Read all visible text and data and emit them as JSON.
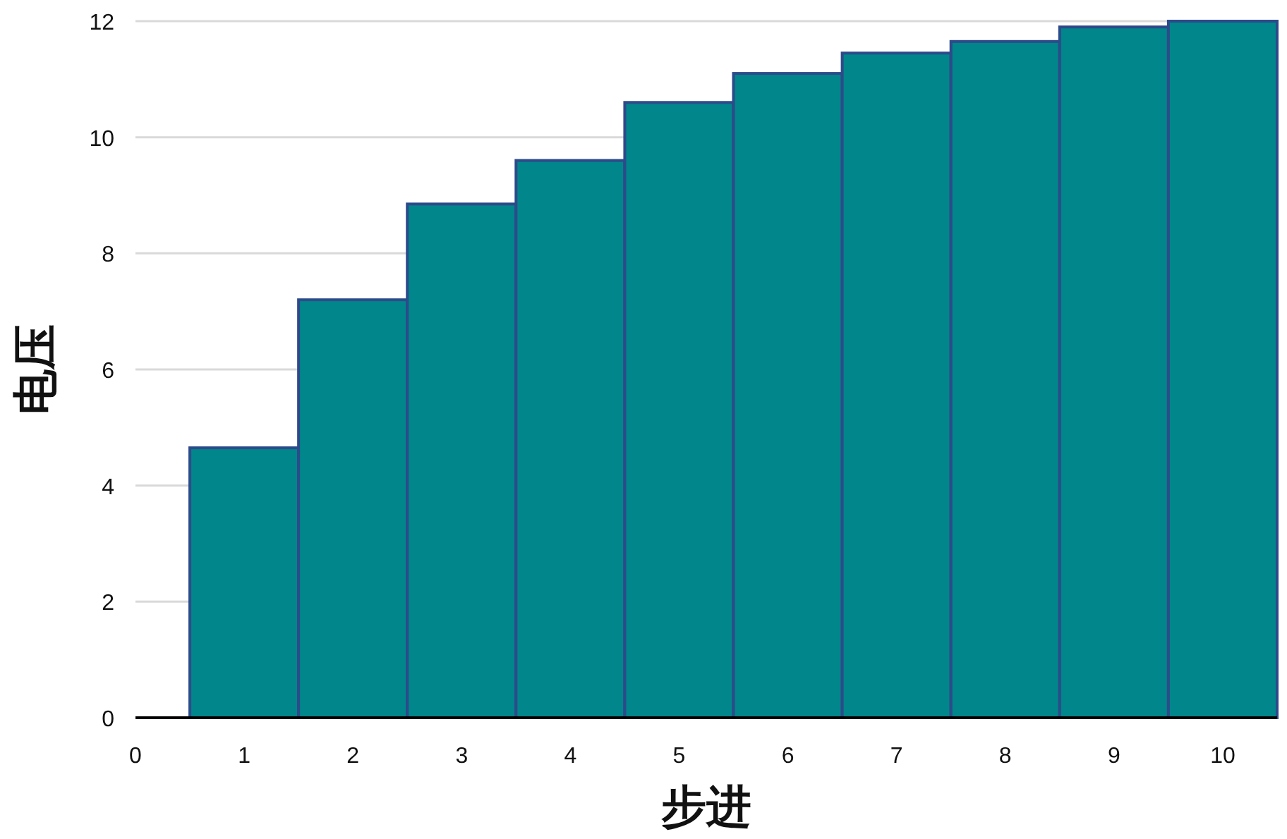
{
  "chart_data": {
    "type": "bar",
    "xlabel": "步进",
    "ylabel": "电压",
    "x": [
      1,
      2,
      3,
      4,
      5,
      6,
      7,
      8,
      9,
      10
    ],
    "values": [
      4.65,
      7.2,
      8.85,
      9.6,
      10.6,
      11.1,
      11.45,
      11.65,
      11.9,
      12
    ],
    "color": "#00868b",
    "xlim": [
      0,
      10.5
    ],
    "xticks": [
      0,
      1,
      2,
      3,
      4,
      5,
      6,
      7,
      8,
      9,
      10
    ],
    "ylim": [
      0,
      12
    ],
    "yticks": [
      0,
      2,
      4,
      6,
      8,
      10,
      12
    ],
    "grid": "y"
  }
}
